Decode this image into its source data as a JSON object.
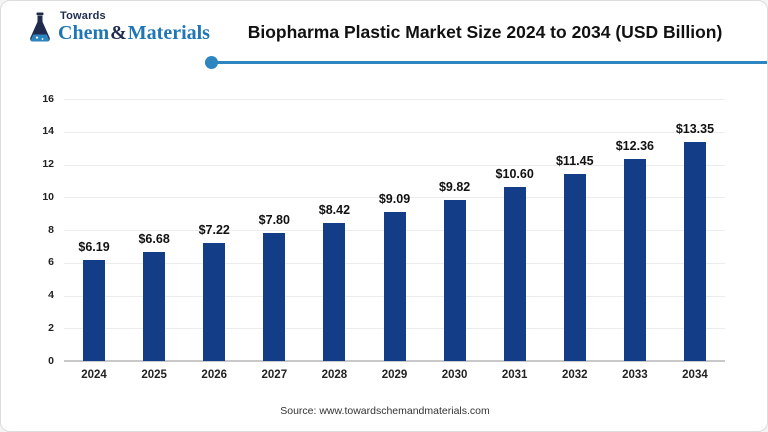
{
  "header": {
    "logo": {
      "towards": "Towards",
      "chem": "Chem",
      "amp": "&",
      "materials": "Materials",
      "navy": "#1f2c4e",
      "blue": "#2076b4"
    },
    "title": "Biopharma Plastic Market Size 2024 to 2034 (USD Billion)",
    "divider_color": "#2e86c1"
  },
  "chart_data": {
    "type": "bar",
    "title": "Biopharma Plastic Market Size 2024 to 2034 (USD Billion)",
    "categories": [
      "2024",
      "2025",
      "2026",
      "2027",
      "2028",
      "2029",
      "2030",
      "2031",
      "2032",
      "2033",
      "2034"
    ],
    "values": [
      6.19,
      6.68,
      7.22,
      7.8,
      8.42,
      9.09,
      9.82,
      10.6,
      11.45,
      12.36,
      13.35
    ],
    "value_labels": [
      "$6.19",
      "$6.68",
      "$7.22",
      "$7.80",
      "$8.42",
      "$9.09",
      "$9.82",
      "$10.60",
      "$11.45",
      "$12.36",
      "$13.35"
    ],
    "xlabel": "",
    "ylabel": "",
    "ylim": [
      0,
      16
    ],
    "ytick_step": 2,
    "ytick_labels": [
      "0",
      "2",
      "4",
      "6",
      "8",
      "10",
      "12",
      "14",
      "16"
    ],
    "grid": true,
    "legend": "none",
    "bar_color": "#143d87",
    "gridline_color": "#ececec",
    "axis_color": "#c8c8c8"
  },
  "footer": {
    "source": "Source: www.towardschemandmaterials.com"
  }
}
